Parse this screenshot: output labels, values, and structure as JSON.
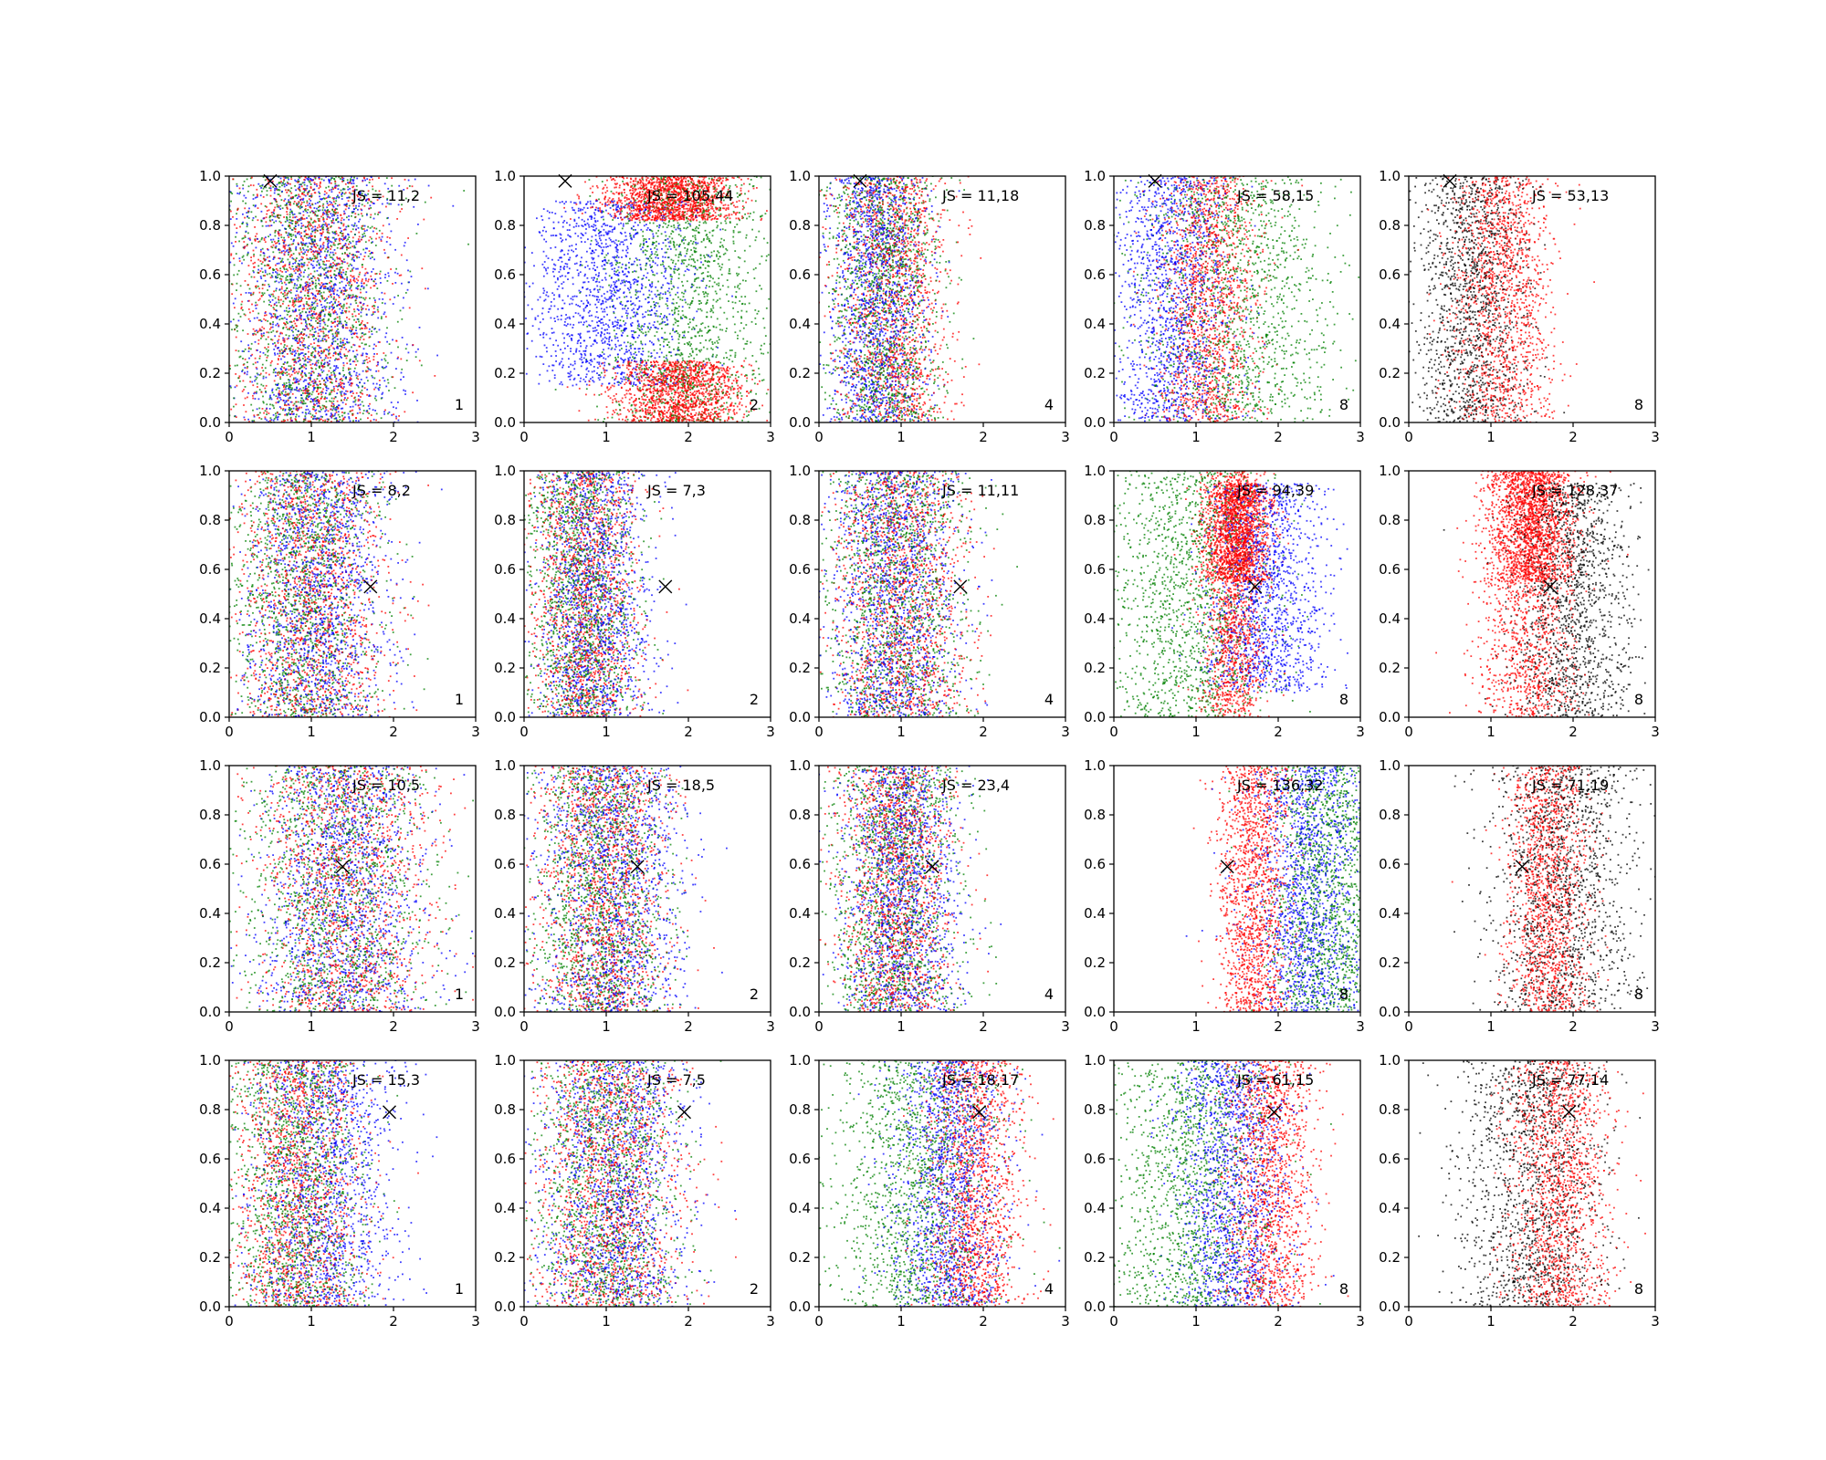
{
  "chart_data": {
    "type": "scatter",
    "layout": {
      "rows": 4,
      "cols": 5
    },
    "xlim": [
      0,
      3
    ],
    "ylim": [
      0,
      1
    ],
    "x_ticks": [
      "0",
      "1",
      "2",
      "3"
    ],
    "y_ticks": [
      "0.0",
      "0.2",
      "0.4",
      "0.6",
      "0.8",
      "1.0"
    ],
    "grid": false,
    "legend": "none",
    "colors": {
      "red": "#ff0000",
      "green": "#008000",
      "blue": "#0000ff",
      "black": "#000000"
    },
    "panels": [
      {
        "row": 0,
        "col": 0,
        "js_text": "JS = 11,2",
        "count_text": "1",
        "marker": {
          "x": 0.5,
          "y": 0.98
        },
        "clusters": [
          {
            "color": "red",
            "x_mean": 1.0,
            "x_sd": 0.5,
            "y_min": 0.0,
            "y_max": 1.0
          },
          {
            "color": "green",
            "x_mean": 0.95,
            "x_sd": 0.5,
            "y_min": 0.0,
            "y_max": 1.0
          },
          {
            "color": "blue",
            "x_mean": 1.1,
            "x_sd": 0.5,
            "y_min": 0.0,
            "y_max": 1.0
          }
        ]
      },
      {
        "row": 0,
        "col": 1,
        "js_text": "JS = 105,44",
        "count_text": "2",
        "marker": {
          "x": 0.5,
          "y": 0.98
        },
        "clusters": [
          {
            "color": "blue",
            "x_mean": 1.0,
            "x_sd": 0.5,
            "y_min": 0.15,
            "y_max": 0.9
          },
          {
            "color": "red",
            "x_mean": 1.9,
            "x_sd": 0.4,
            "y_min": 0.0,
            "y_max": 0.25
          },
          {
            "color": "red",
            "x_mean": 1.8,
            "x_sd": 0.4,
            "y_min": 0.82,
            "y_max": 1.0
          },
          {
            "color": "green",
            "x_mean": 2.0,
            "x_sd": 0.5,
            "y_min": 0.0,
            "y_max": 1.0
          }
        ]
      },
      {
        "row": 0,
        "col": 2,
        "js_text": "JS = 11,18",
        "count_text": "4",
        "marker": {
          "x": 0.5,
          "y": 0.98
        },
        "clusters": [
          {
            "color": "red",
            "x_mean": 0.9,
            "x_sd": 0.35,
            "y_min": 0.0,
            "y_max": 1.0
          },
          {
            "color": "green",
            "x_mean": 0.8,
            "x_sd": 0.35,
            "y_min": 0.0,
            "y_max": 1.0
          },
          {
            "color": "blue",
            "x_mean": 0.7,
            "x_sd": 0.3,
            "y_min": 0.0,
            "y_max": 1.0
          }
        ]
      },
      {
        "row": 0,
        "col": 3,
        "js_text": "JS = 58,15",
        "count_text": "8",
        "marker": {
          "x": 0.5,
          "y": 0.98
        },
        "clusters": [
          {
            "color": "blue",
            "x_mean": 0.7,
            "x_sd": 0.35,
            "y_min": 0.0,
            "y_max": 1.0
          },
          {
            "color": "red",
            "x_mean": 1.15,
            "x_sd": 0.3,
            "y_min": 0.0,
            "y_max": 1.0
          },
          {
            "color": "green",
            "x_mean": 1.5,
            "x_sd": 0.6,
            "y_min": 0.0,
            "y_max": 1.0
          }
        ]
      },
      {
        "row": 0,
        "col": 4,
        "js_text": "JS = 53,13",
        "count_text": "8",
        "marker": {
          "x": 0.5,
          "y": 0.98
        },
        "clusters": [
          {
            "color": "black",
            "x_mean": 0.75,
            "x_sd": 0.35,
            "y_min": 0.0,
            "y_max": 1.0
          },
          {
            "color": "red",
            "x_mean": 1.15,
            "x_sd": 0.3,
            "y_min": 0.0,
            "y_max": 1.0
          }
        ]
      },
      {
        "row": 1,
        "col": 0,
        "js_text": "JS = 8,2",
        "count_text": "1",
        "marker": {
          "x": 1.72,
          "y": 0.53
        },
        "clusters": [
          {
            "color": "red",
            "x_mean": 1.0,
            "x_sd": 0.45,
            "y_min": 0.0,
            "y_max": 1.0
          },
          {
            "color": "green",
            "x_mean": 0.9,
            "x_sd": 0.45,
            "y_min": 0.0,
            "y_max": 1.0
          },
          {
            "color": "blue",
            "x_mean": 1.1,
            "x_sd": 0.45,
            "y_min": 0.0,
            "y_max": 1.0
          }
        ]
      },
      {
        "row": 1,
        "col": 1,
        "js_text": "JS = 7,3",
        "count_text": "2",
        "marker": {
          "x": 1.72,
          "y": 0.53
        },
        "clusters": [
          {
            "color": "red",
            "x_mean": 0.75,
            "x_sd": 0.35,
            "y_min": 0.0,
            "y_max": 1.0
          },
          {
            "color": "green",
            "x_mean": 0.7,
            "x_sd": 0.35,
            "y_min": 0.0,
            "y_max": 1.0
          },
          {
            "color": "blue",
            "x_mean": 0.85,
            "x_sd": 0.35,
            "y_min": 0.0,
            "y_max": 1.0
          }
        ]
      },
      {
        "row": 1,
        "col": 2,
        "js_text": "JS = 11,11",
        "count_text": "4",
        "marker": {
          "x": 1.72,
          "y": 0.53
        },
        "clusters": [
          {
            "color": "red",
            "x_mean": 1.0,
            "x_sd": 0.4,
            "y_min": 0.0,
            "y_max": 1.0
          },
          {
            "color": "green",
            "x_mean": 0.95,
            "x_sd": 0.45,
            "y_min": 0.0,
            "y_max": 1.0
          },
          {
            "color": "blue",
            "x_mean": 0.9,
            "x_sd": 0.4,
            "y_min": 0.0,
            "y_max": 1.0
          }
        ]
      },
      {
        "row": 1,
        "col": 3,
        "js_text": "JS = 94,39",
        "count_text": "8",
        "marker": {
          "x": 1.72,
          "y": 0.53
        },
        "clusters": [
          {
            "color": "green",
            "x_mean": 0.9,
            "x_sd": 0.5,
            "y_min": 0.0,
            "y_max": 1.0
          },
          {
            "color": "red",
            "x_mean": 1.45,
            "x_sd": 0.2,
            "y_min": 0.0,
            "y_max": 1.0
          },
          {
            "color": "red",
            "x_mean": 1.5,
            "x_sd": 0.2,
            "y_min": 0.55,
            "y_max": 0.95
          },
          {
            "color": "blue",
            "x_mean": 1.85,
            "x_sd": 0.35,
            "y_min": 0.1,
            "y_max": 0.95
          }
        ]
      },
      {
        "row": 1,
        "col": 4,
        "js_text": "JS = 128,37",
        "count_text": "8",
        "marker": {
          "x": 1.72,
          "y": 0.53
        },
        "clusters": [
          {
            "color": "red",
            "x_mean": 1.45,
            "x_sd": 0.3,
            "y_min": 0.0,
            "y_max": 1.0
          },
          {
            "color": "red",
            "x_mean": 1.5,
            "x_sd": 0.25,
            "y_min": 0.55,
            "y_max": 1.0
          },
          {
            "color": "black",
            "x_mean": 2.0,
            "x_sd": 0.35,
            "y_min": 0.0,
            "y_max": 0.95
          }
        ]
      },
      {
        "row": 2,
        "col": 0,
        "js_text": "JS = 10,5",
        "count_text": "1",
        "marker": {
          "x": 1.38,
          "y": 0.59
        },
        "clusters": [
          {
            "color": "red",
            "x_mean": 1.4,
            "x_sd": 0.55,
            "y_min": 0.0,
            "y_max": 1.0
          },
          {
            "color": "green",
            "x_mean": 1.3,
            "x_sd": 0.55,
            "y_min": 0.0,
            "y_max": 1.0
          },
          {
            "color": "blue",
            "x_mean": 1.4,
            "x_sd": 0.5,
            "y_min": 0.0,
            "y_max": 1.0
          }
        ]
      },
      {
        "row": 2,
        "col": 1,
        "js_text": "JS = 18,5",
        "count_text": "2",
        "marker": {
          "x": 1.38,
          "y": 0.59
        },
        "clusters": [
          {
            "color": "red",
            "x_mean": 0.95,
            "x_sd": 0.4,
            "y_min": 0.0,
            "y_max": 1.0
          },
          {
            "color": "green",
            "x_mean": 0.9,
            "x_sd": 0.4,
            "y_min": 0.0,
            "y_max": 1.0
          },
          {
            "color": "blue",
            "x_mean": 1.1,
            "x_sd": 0.45,
            "y_min": 0.0,
            "y_max": 1.0
          }
        ]
      },
      {
        "row": 2,
        "col": 2,
        "js_text": "JS = 23,4",
        "count_text": "4",
        "marker": {
          "x": 1.38,
          "y": 0.59
        },
        "clusters": [
          {
            "color": "red",
            "x_mean": 0.95,
            "x_sd": 0.35,
            "y_min": 0.0,
            "y_max": 1.0
          },
          {
            "color": "green",
            "x_mean": 0.95,
            "x_sd": 0.4,
            "y_min": 0.0,
            "y_max": 1.0
          },
          {
            "color": "blue",
            "x_mean": 1.0,
            "x_sd": 0.35,
            "y_min": 0.0,
            "y_max": 1.0
          }
        ]
      },
      {
        "row": 2,
        "col": 3,
        "js_text": "JS = 136,32",
        "count_text": "8",
        "marker": {
          "x": 1.38,
          "y": 0.59
        },
        "clusters": [
          {
            "color": "red",
            "x_mean": 1.7,
            "x_sd": 0.22,
            "y_min": 0.0,
            "y_max": 1.0
          },
          {
            "color": "blue",
            "x_mean": 2.35,
            "x_sd": 0.35,
            "y_min": 0.0,
            "y_max": 1.0
          },
          {
            "color": "green",
            "x_mean": 2.6,
            "x_sd": 0.35,
            "y_min": 0.0,
            "y_max": 1.0
          }
        ]
      },
      {
        "row": 2,
        "col": 4,
        "js_text": "JS = 71,19",
        "count_text": "8",
        "marker": {
          "x": 1.38,
          "y": 0.59
        },
        "clusters": [
          {
            "color": "black",
            "x_mean": 1.9,
            "x_sd": 0.45,
            "y_min": 0.0,
            "y_max": 1.0
          },
          {
            "color": "red",
            "x_mean": 1.7,
            "x_sd": 0.25,
            "y_min": 0.0,
            "y_max": 1.0
          }
        ]
      },
      {
        "row": 3,
        "col": 0,
        "js_text": "JS = 15,3",
        "count_text": "1",
        "marker": {
          "x": 1.95,
          "y": 0.79
        },
        "clusters": [
          {
            "color": "red",
            "x_mean": 0.85,
            "x_sd": 0.4,
            "y_min": 0.0,
            "y_max": 1.0
          },
          {
            "color": "green",
            "x_mean": 0.8,
            "x_sd": 0.4,
            "y_min": 0.0,
            "y_max": 1.0
          },
          {
            "color": "blue",
            "x_mean": 1.15,
            "x_sd": 0.45,
            "y_min": 0.0,
            "y_max": 1.0
          }
        ]
      },
      {
        "row": 3,
        "col": 1,
        "js_text": "JS = 7,5",
        "count_text": "2",
        "marker": {
          "x": 1.95,
          "y": 0.79
        },
        "clusters": [
          {
            "color": "red",
            "x_mean": 1.05,
            "x_sd": 0.45,
            "y_min": 0.0,
            "y_max": 1.0
          },
          {
            "color": "green",
            "x_mean": 1.0,
            "x_sd": 0.45,
            "y_min": 0.0,
            "y_max": 1.0
          },
          {
            "color": "blue",
            "x_mean": 1.1,
            "x_sd": 0.45,
            "y_min": 0.0,
            "y_max": 1.0
          }
        ]
      },
      {
        "row": 3,
        "col": 2,
        "js_text": "JS = 18,17",
        "count_text": "4",
        "marker": {
          "x": 1.95,
          "y": 0.79
        },
        "clusters": [
          {
            "color": "green",
            "x_mean": 1.2,
            "x_sd": 0.5,
            "y_min": 0.0,
            "y_max": 1.0
          },
          {
            "color": "blue",
            "x_mean": 1.6,
            "x_sd": 0.35,
            "y_min": 0.0,
            "y_max": 1.0
          },
          {
            "color": "red",
            "x_mean": 1.9,
            "x_sd": 0.3,
            "y_min": 0.0,
            "y_max": 1.0
          }
        ]
      },
      {
        "row": 3,
        "col": 3,
        "js_text": "JS = 61,15",
        "count_text": "8",
        "marker": {
          "x": 1.95,
          "y": 0.79
        },
        "clusters": [
          {
            "color": "green",
            "x_mean": 0.95,
            "x_sd": 0.5,
            "y_min": 0.0,
            "y_max": 1.0
          },
          {
            "color": "blue",
            "x_mean": 1.45,
            "x_sd": 0.35,
            "y_min": 0.0,
            "y_max": 1.0
          },
          {
            "color": "red",
            "x_mean": 1.9,
            "x_sd": 0.28,
            "y_min": 0.0,
            "y_max": 1.0
          }
        ]
      },
      {
        "row": 3,
        "col": 4,
        "js_text": "JS = 77,14",
        "count_text": "8",
        "marker": {
          "x": 1.95,
          "y": 0.79
        },
        "clusters": [
          {
            "color": "black",
            "x_mean": 1.5,
            "x_sd": 0.45,
            "y_min": 0.0,
            "y_max": 1.0
          },
          {
            "color": "red",
            "x_mean": 1.85,
            "x_sd": 0.3,
            "y_min": 0.0,
            "y_max": 1.0
          }
        ]
      }
    ]
  }
}
